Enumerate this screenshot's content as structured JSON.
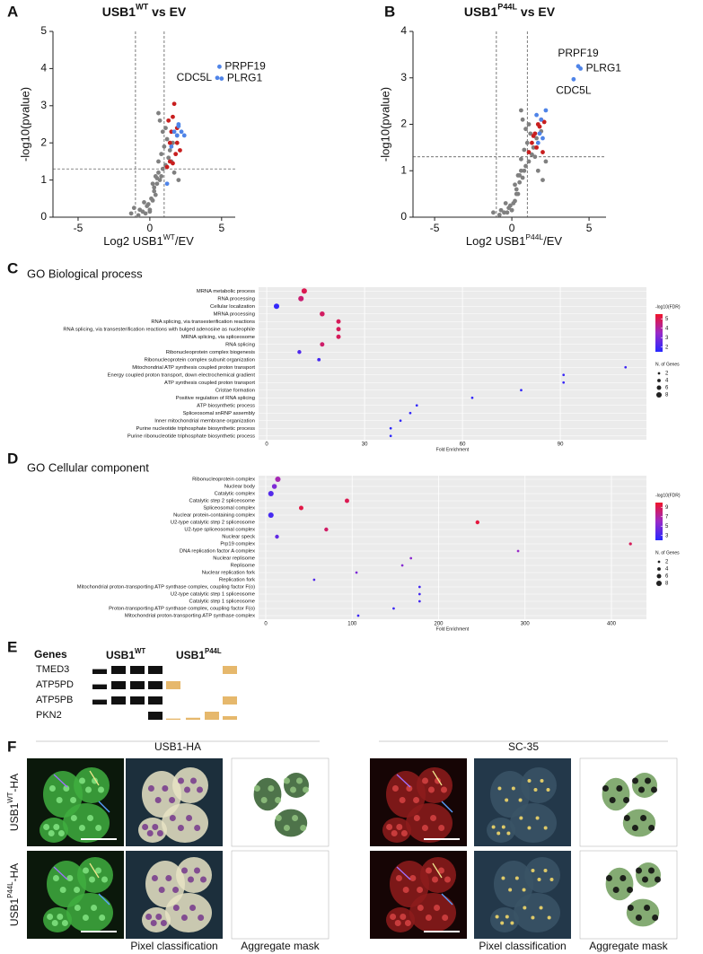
{
  "panel_labels": [
    "A",
    "B",
    "C",
    "D",
    "E",
    "F"
  ],
  "chart_data": [
    {
      "type": "scatter",
      "title": {
        "text": "USB1",
        "sup": "WT",
        "rest": " vs EV"
      },
      "xlabel": {
        "text": "Log2 USB1",
        "sup": "WT",
        "rest": "/EV"
      },
      "ylabel": "-log10(pvalue)",
      "xlim": [
        -6.75,
        5.95
      ],
      "ylim": [
        0,
        5
      ],
      "xticks": [
        -5,
        0,
        5
      ],
      "yticks": [
        0,
        1,
        2,
        3,
        4,
        5
      ],
      "thresholds": {
        "x": [
          -1,
          1
        ],
        "y": 1.3
      },
      "series": [
        {
          "color": "#808080",
          "x": [
            -0.3,
            -0.5,
            -0.8,
            -0.2,
            0,
            0.2,
            0.4,
            0.1,
            -0.1,
            0.3,
            0.5,
            0.7,
            0.6,
            0.9,
            1.1,
            1.3,
            0.8,
            1.0,
            1.5,
            1.2,
            0.4,
            0.6,
            0.9,
            1.4,
            1.7,
            2.0,
            0.3,
            0.7,
            1.1,
            -0.4,
            -0.7,
            0.2,
            0.5,
            0.8,
            1.6,
            0.0,
            -1.1,
            -1.3,
            1.9,
            0.6
          ],
          "y": [
            0.1,
            0.15,
            0.05,
            0.3,
            0.2,
            0.45,
            0.6,
            0.5,
            0.35,
            0.8,
            0.9,
            1.0,
            1.2,
            1.3,
            1.4,
            1.6,
            1.7,
            1.9,
            1.5,
            2.1,
            1.1,
            1.5,
            2.3,
            1.8,
            1.2,
            1.0,
            0.7,
            2.6,
            2.4,
            0.4,
            0.2,
            0.9,
            1.05,
            1.1,
            2.0,
            0.15,
            0.25,
            0.1,
            2.2,
            2.8
          ]
        },
        {
          "color": "#c81e1e",
          "x": [
            1.2,
            1.4,
            1.6,
            1.8,
            1.9,
            1.5,
            1.3,
            1.7,
            2.1,
            1.6,
            1.4,
            1.9
          ],
          "y": [
            1.35,
            1.5,
            1.45,
            1.7,
            2.0,
            2.3,
            2.6,
            3.05,
            1.8,
            2.7,
            2.0,
            2.4
          ]
        },
        {
          "color": "#4f84e8",
          "x": [
            1.7,
            1.9,
            2.0,
            2.2,
            2.4,
            1.5,
            1.2,
            2.0,
            4.85,
            4.7,
            5.0
          ],
          "y": [
            2.3,
            2.2,
            2.45,
            2.3,
            2.2,
            1.9,
            0.9,
            2.5,
            4.05,
            3.75,
            3.73
          ]
        }
      ],
      "annotations": [
        {
          "text": "PRPF19",
          "x": 4.85,
          "y": 4.05,
          "side": "right"
        },
        {
          "text": "CDC5L",
          "x": 4.7,
          "y": 3.75,
          "side": "left"
        },
        {
          "text": "PLRG1",
          "x": 5.0,
          "y": 3.73,
          "side": "right"
        }
      ]
    },
    {
      "type": "scatter",
      "title": {
        "text": "USB1",
        "sup": "P44L",
        "rest": " vs EV"
      },
      "xlabel": {
        "text": "Log2 USB1",
        "sup": "P44L",
        "rest": "/EV"
      },
      "ylabel": "-log10(pvalue)",
      "xlim": [
        -6.4,
        6.1
      ],
      "ylim": [
        0,
        4
      ],
      "xticks": [
        -5,
        0,
        5
      ],
      "yticks": [
        0,
        1,
        2,
        3,
        4
      ],
      "thresholds": {
        "x": [
          -1,
          1
        ],
        "y": 1.3
      },
      "series": [
        {
          "color": "#808080",
          "x": [
            -0.3,
            -0.5,
            -0.8,
            -0.2,
            0,
            0.2,
            0.4,
            0.1,
            -0.1,
            0.3,
            0.5,
            0.7,
            0.6,
            0.9,
            1.1,
            1.3,
            0.8,
            1.0,
            1.5,
            1.2,
            0.4,
            0.6,
            0.9,
            1.4,
            1.7,
            2.0,
            0.3,
            0.7,
            1.1,
            -0.4,
            -0.7,
            0.2,
            0.5,
            0.8,
            1.6,
            0.0,
            -1.2,
            2.2,
            1.9,
            0.6
          ],
          "y": [
            0.1,
            0.1,
            0.05,
            0.2,
            0.15,
            0.35,
            0.5,
            0.3,
            0.25,
            0.6,
            0.75,
            0.85,
            1.0,
            1.1,
            1.2,
            1.35,
            1.45,
            1.6,
            1.3,
            1.8,
            0.9,
            1.25,
            1.9,
            1.5,
            1.0,
            0.8,
            0.5,
            2.1,
            2.0,
            0.3,
            0.15,
            0.7,
            0.9,
            1.0,
            1.7,
            0.15,
            0.1,
            1.2,
            1.85,
            2.3
          ]
        },
        {
          "color": "#c81e1e",
          "x": [
            1.1,
            1.3,
            1.5,
            1.7,
            1.9,
            1.6,
            1.8,
            2.1,
            1.4,
            2.0
          ],
          "y": [
            1.4,
            1.6,
            1.8,
            2.0,
            2.1,
            1.5,
            1.95,
            2.05,
            1.75,
            1.4
          ]
        },
        {
          "color": "#4f84e8",
          "x": [
            1.6,
            1.8,
            2.0,
            2.2,
            1.7,
            1.9,
            4.3,
            4.45,
            4.0
          ],
          "y": [
            2.2,
            1.8,
            1.7,
            2.3,
            1.6,
            2.1,
            3.25,
            3.2,
            2.97
          ]
        }
      ],
      "annotations": [
        {
          "text": "PRPF19",
          "x": 4.3,
          "y": 3.25,
          "side": "above"
        },
        {
          "text": "PLRG1",
          "x": 4.45,
          "y": 3.2,
          "side": "right"
        },
        {
          "text": "CDC5L",
          "x": 4.0,
          "y": 2.97,
          "side": "below"
        }
      ]
    },
    {
      "type": "dot",
      "title": "GO Biological process",
      "xlabel": "Fold Enrichment",
      "xlim": [
        -2.5,
        116.4
      ],
      "xticks": [
        0,
        30,
        60,
        90
      ],
      "grid": true,
      "categories": [
        "MRNA metabolic process",
        "RNA processing",
        "Cellular localization",
        "MRNA processing",
        "RNA splicing, via transesterification reactions",
        "RNA splicing, via transesterification reactions with bulged adenosine as nucleophile",
        "MRNA splicing, via spliceosome",
        "RNA splicing",
        "Ribonucleoprotein complex biogenesis",
        "Ribonucleoprotein complex subunit organization",
        "Mitochondrial ATP synthesis coupled proton transport",
        "Energy coupled proton transport, down electrochemical gradient",
        "ATP synthesis coupled proton transport",
        "Cristae formation",
        "Positive regulation of RNA splicing",
        "ATP biosynthetic process",
        "Spliceosomal snRNP assembly",
        "Inner mitochondrial membrane organization",
        "Purine nucleotide triphosphate biosynthetic process",
        "Purine ribonucleotide triphosphate biosynthetic process"
      ],
      "values": [
        11.5,
        10.5,
        3,
        17,
        22,
        22,
        22,
        17,
        10,
        16,
        110,
        91,
        91,
        78,
        63,
        46,
        44,
        41,
        38,
        38
      ],
      "color_values": [
        5.0,
        4.6,
        1.7,
        4.8,
        4.9,
        4.9,
        4.9,
        4.7,
        2.2,
        2.0,
        1.9,
        1.8,
        1.8,
        1.7,
        1.7,
        1.7,
        1.7,
        1.7,
        1.6,
        1.6
      ],
      "size_values": [
        8,
        8,
        8,
        7,
        6,
        6,
        6,
        6,
        5,
        4,
        2,
        2,
        2,
        2,
        2,
        2,
        2,
        2,
        2,
        2
      ],
      "color_scale": {
        "title": "-log10(FDR)",
        "lim": [
          1.5,
          5.5
        ],
        "ticks": [
          5,
          4,
          3,
          2
        ],
        "colors": [
          "#2828ff",
          "#9a2ac8",
          "#f0142a"
        ]
      },
      "size_legend": {
        "title": "N. of Genes",
        "ticks": [
          2,
          4,
          6,
          8
        ]
      }
    },
    {
      "type": "dot",
      "title": "GO Cellular component",
      "xlabel": "Fold Enrichment",
      "xlim": [
        -8.3,
        440.5
      ],
      "xticks": [
        0,
        100,
        200,
        300,
        400
      ],
      "grid": true,
      "categories": [
        "Ribonucleoprotein complex",
        "Nuclear body",
        "Catalytic complex",
        "Catalytic step 2 spliceosome",
        "Spliceosomal complex",
        "Nuclear protein-containing complex",
        "U2-type catalytic step 2 spliceosome",
        "U2-type spliceosomal complex",
        "Nuclear speck",
        "Prp19 complex",
        "DNA replication factor A complex",
        "Nuclear replisome",
        "Replisome",
        "Nuclear replication fork",
        "Replication fork",
        "Mitochondrial proton-transporting ATP synthase complex, coupling factor F(o)",
        "U2-type catalytic step 1 spliceosome",
        "Catalytic step 1 spliceosome",
        "Proton-transporting ATP synthase complex, coupling factor F(o)",
        "Mitochondrial proton-transporting ATP synthase complex"
      ],
      "values": [
        14,
        10,
        6,
        94,
        41,
        6,
        245,
        70,
        13,
        422,
        292,
        168,
        158,
        105,
        56,
        178,
        178,
        178,
        148,
        107
      ],
      "color_values": [
        6.5,
        5,
        3.5,
        9,
        9.3,
        3,
        9.5,
        8.5,
        4,
        8.8,
        6,
        5.5,
        5.3,
        5,
        3.5,
        3,
        3,
        3,
        2.7,
        2.7
      ],
      "size_values": [
        8,
        7,
        8,
        6,
        6,
        8,
        5,
        5,
        5,
        3,
        2,
        2,
        2,
        2,
        2,
        2,
        2,
        2,
        2,
        2
      ],
      "color_scale": {
        "title": "-log10(FDR)",
        "lim": [
          2,
          10
        ],
        "ticks": [
          9,
          7,
          5,
          3
        ],
        "colors": [
          "#2828ff",
          "#9a2ac8",
          "#f0142a"
        ]
      },
      "size_legend": {
        "title": "N. of Genes",
        "ticks": [
          2,
          4,
          6,
          8
        ]
      }
    }
  ],
  "heatmap": {
    "title": "Genes",
    "groups": [
      {
        "text": "USB1",
        "sup": "WT"
      },
      {
        "text": "USB1",
        "sup": "P44L"
      }
    ],
    "genes": [
      "TMED3",
      "ATP5PD",
      "ATP5PB",
      "PKN2"
    ],
    "colors": [
      "#111111",
      "#e6b86c"
    ],
    "levels": [
      [
        [
          0.6,
          1,
          1,
          1
        ],
        [
          0,
          0,
          0,
          1
        ]
      ],
      [
        [
          0.6,
          1,
          1,
          1
        ],
        [
          1,
          0,
          0,
          0
        ]
      ],
      [
        [
          0.6,
          1,
          1,
          1
        ],
        [
          0,
          0,
          0,
          1
        ]
      ],
      [
        [
          0,
          0,
          0,
          1
        ],
        [
          0.15,
          0.25,
          1,
          0.45
        ]
      ]
    ]
  },
  "microscopy": {
    "columns": [
      "USB1-HA",
      "SC-35"
    ],
    "rows": [
      {
        "text": "USB1",
        "sup": "WT",
        "rest": "-HA"
      },
      {
        "text": "USB1",
        "sup": "P44L",
        "rest": "-HA"
      }
    ],
    "captions": [
      "Pixel classification",
      "Aggregate mask"
    ]
  }
}
